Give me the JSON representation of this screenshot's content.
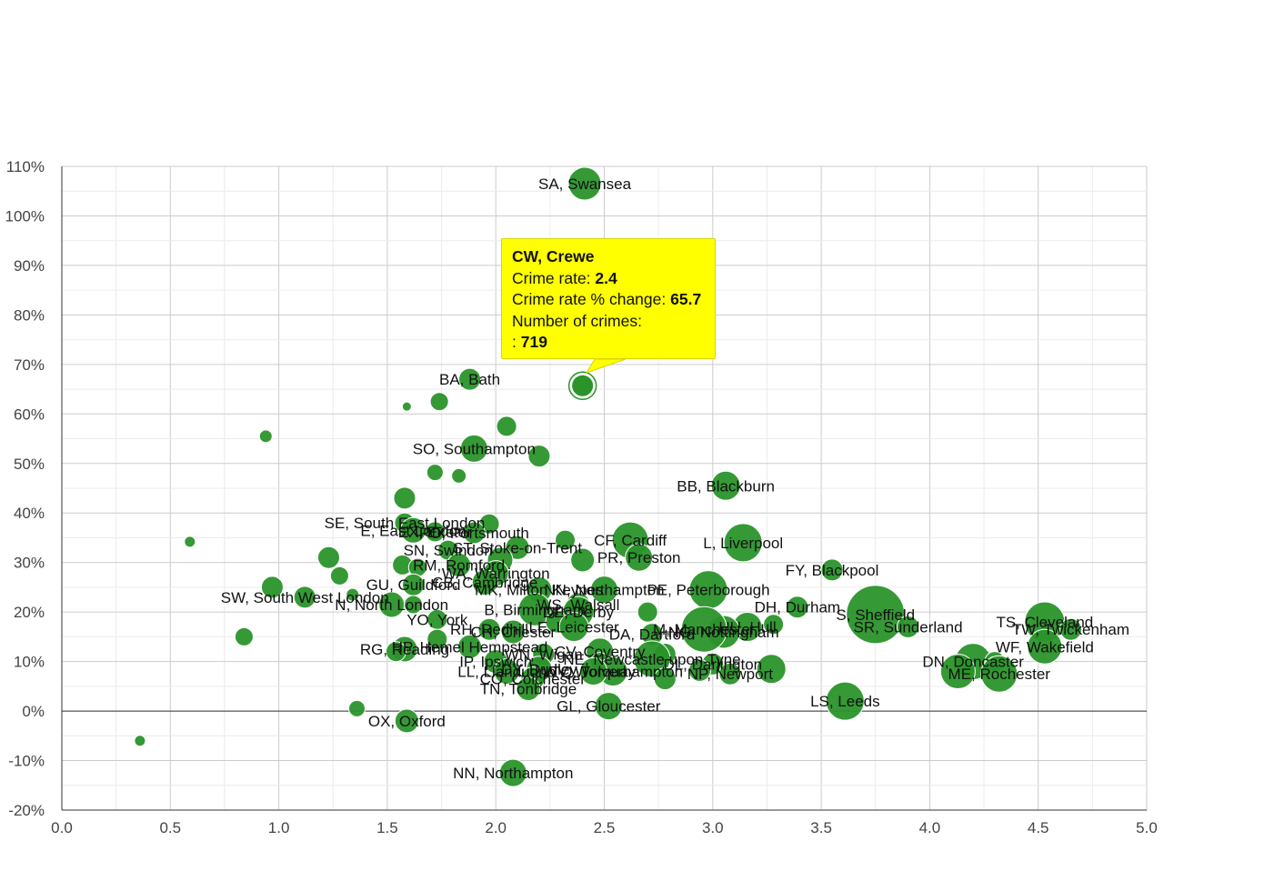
{
  "chart_data": {
    "type": "scatter",
    "title": "",
    "xlabel": "",
    "ylabel": "",
    "xlim": [
      0,
      5
    ],
    "ylim": [
      -20,
      110
    ],
    "x_ticks": [
      "0.0",
      "0.5",
      "1.0",
      "1.5",
      "2.0",
      "2.5",
      "3.0",
      "3.5",
      "4.0",
      "4.5",
      "5.0"
    ],
    "y_ticks": [
      "-20%",
      "-10%",
      "0%",
      "10%",
      "20%",
      "30%",
      "40%",
      "50%",
      "60%",
      "70%",
      "80%",
      "90%",
      "100%",
      "110%"
    ],
    "grid": true,
    "bubble_color": "#2a942a",
    "points": [
      {
        "label": "SA, Swansea",
        "x": 2.41,
        "y": 106.5,
        "r": 18
      },
      {
        "label": "BA, Bath",
        "x": 1.88,
        "y": 67,
        "r": 12
      },
      {
        "label": "",
        "x": 1.59,
        "y": 61.5,
        "r": 5
      },
      {
        "label": "",
        "x": 1.74,
        "y": 62.5,
        "r": 10
      },
      {
        "label": "",
        "x": 2.05,
        "y": 57.5,
        "r": 11
      },
      {
        "label": "",
        "x": 0.94,
        "y": 55.5,
        "r": 7
      },
      {
        "label": "SO, Southampton",
        "x": 1.9,
        "y": 53,
        "r": 15
      },
      {
        "label": "",
        "x": 2.2,
        "y": 51.5,
        "r": 12
      },
      {
        "label": "",
        "x": 1.72,
        "y": 48.2,
        "r": 9
      },
      {
        "label": "",
        "x": 1.83,
        "y": 47.5,
        "r": 8
      },
      {
        "label": "BB, Blackburn",
        "x": 3.06,
        "y": 45.5,
        "r": 16
      },
      {
        "label": "",
        "x": 1.58,
        "y": 43,
        "r": 12
      },
      {
        "label": "SE, South East London",
        "x": 1.58,
        "y": 38,
        "r": 11
      },
      {
        "label": "",
        "x": 1.97,
        "y": 37.8,
        "r": 11
      },
      {
        "label": "E, East London",
        "x": 1.62,
        "y": 36.5,
        "r": 14
      },
      {
        "label": "EX, Exeter",
        "x": 1.72,
        "y": 36.2,
        "r": 11
      },
      {
        "label": "PO, Portsmouth",
        "x": 1.9,
        "y": 36,
        "r": 12
      },
      {
        "label": "",
        "x": 0.59,
        "y": 34.2,
        "r": 6
      },
      {
        "label": "L, Liverpool",
        "x": 3.14,
        "y": 34,
        "r": 21
      },
      {
        "label": "CF, Cardiff",
        "x": 2.62,
        "y": 34.5,
        "r": 20
      },
      {
        "label": "",
        "x": 2.32,
        "y": 34.5,
        "r": 11
      },
      {
        "label": "ST, Stoke-on-Trent",
        "x": 2.1,
        "y": 33,
        "r": 13
      },
      {
        "label": "SN, Swindon",
        "x": 1.78,
        "y": 32.5,
        "r": 11
      },
      {
        "label": "",
        "x": 1.23,
        "y": 31,
        "r": 12
      },
      {
        "label": "PR, Preston",
        "x": 2.66,
        "y": 31,
        "r": 15
      },
      {
        "label": "",
        "x": 2.4,
        "y": 30.5,
        "r": 13
      },
      {
        "label": "",
        "x": 2.02,
        "y": 30.5,
        "r": 14
      },
      {
        "label": "RM, Romford",
        "x": 1.83,
        "y": 29.5,
        "r": 13
      },
      {
        "label": "",
        "x": 1.57,
        "y": 29.5,
        "r": 11
      },
      {
        "label": "",
        "x": 1.64,
        "y": 29,
        "r": 10
      },
      {
        "label": "FY, Blackpool",
        "x": 3.55,
        "y": 28.5,
        "r": 12
      },
      {
        "label": "WA, Warrington",
        "x": 2.0,
        "y": 27.8,
        "r": 14
      },
      {
        "label": "",
        "x": 1.28,
        "y": 27.3,
        "r": 10
      },
      {
        "label": "GU, Guildford",
        "x": 1.62,
        "y": 25.5,
        "r": 12
      },
      {
        "label": "CB, Cambridge",
        "x": 1.95,
        "y": 26,
        "r": 14
      },
      {
        "label": "MK, Milton Keynes",
        "x": 2.2,
        "y": 24.5,
        "r": 14
      },
      {
        "label": "NN, Northampton",
        "x": 2.5,
        "y": 24.5,
        "r": 15
      },
      {
        "label": "PE, Peterborough",
        "x": 2.98,
        "y": 24.5,
        "r": 21
      },
      {
        "label": "",
        "x": 0.97,
        "y": 25,
        "r": 12
      },
      {
        "label": "SW, South West London",
        "x": 1.12,
        "y": 23,
        "r": 12
      },
      {
        "label": "",
        "x": 1.34,
        "y": 23.5,
        "r": 7
      },
      {
        "label": "N, North London",
        "x": 1.52,
        "y": 21.5,
        "r": 14
      },
      {
        "label": "",
        "x": 1.62,
        "y": 21.5,
        "r": 10
      },
      {
        "label": "WS, Walsall",
        "x": 2.38,
        "y": 21.5,
        "r": 13
      },
      {
        "label": "DH, Durham",
        "x": 3.39,
        "y": 21,
        "r": 12
      },
      {
        "label": "S, Sheffield",
        "x": 3.75,
        "y": 19.5,
        "r": 32
      },
      {
        "label": "",
        "x": 2.7,
        "y": 20,
        "r": 11
      },
      {
        "label": "B, Birmingham",
        "x": 2.18,
        "y": 20.5,
        "r": 18
      },
      {
        "label": "DE, Derby",
        "x": 2.38,
        "y": 20,
        "r": 17
      },
      {
        "label": "YO, York",
        "x": 1.73,
        "y": 18.5,
        "r": 11
      },
      {
        "label": "",
        "x": 2.28,
        "y": 18,
        "r": 12
      },
      {
        "label": "TS, Cleveland",
        "x": 4.53,
        "y": 18,
        "r": 22
      },
      {
        "label": "TW, Twickenham",
        "x": 4.65,
        "y": 16.5,
        "r": 12
      },
      {
        "label": "HU, Hull",
        "x": 3.16,
        "y": 17,
        "r": 16
      },
      {
        "label": "",
        "x": 3.28,
        "y": 17.5,
        "r": 11
      },
      {
        "label": "NG, Nottingham",
        "x": 3.05,
        "y": 16,
        "r": 18
      },
      {
        "label": "SR, Sunderland",
        "x": 3.9,
        "y": 17,
        "r": 12
      },
      {
        "label": "RH, Redhill",
        "x": 1.97,
        "y": 16.5,
        "r": 12
      },
      {
        "label": "LE, Leicester",
        "x": 2.36,
        "y": 17,
        "r": 16
      },
      {
        "label": "M, Manchester",
        "x": 2.96,
        "y": 16.5,
        "r": 25
      },
      {
        "label": "CH, Chester",
        "x": 2.08,
        "y": 16,
        "r": 13
      },
      {
        "label": "DA, Dartford",
        "x": 2.72,
        "y": 15.5,
        "r": 12
      },
      {
        "label": "",
        "x": 0.84,
        "y": 15,
        "r": 10
      },
      {
        "label": "",
        "x": 1.73,
        "y": 14.5,
        "r": 11
      },
      {
        "label": "WF, Wakefield",
        "x": 4.53,
        "y": 13,
        "r": 19
      },
      {
        "label": "HP, Hemel Hempstead",
        "x": 1.88,
        "y": 13,
        "r": 13
      },
      {
        "label": "RG, Reading",
        "x": 1.58,
        "y": 12.5,
        "r": 14
      },
      {
        "label": "",
        "x": 1.54,
        "y": 12,
        "r": 11
      },
      {
        "label": "CV, Coventry",
        "x": 2.48,
        "y": 12,
        "r": 15
      },
      {
        "label": "WN, Wigan",
        "x": 2.22,
        "y": 11.5,
        "r": 12
      },
      {
        "label": "",
        "x": 2.78,
        "y": 11.5,
        "r": 12
      },
      {
        "label": "IP, Ipswich",
        "x": 2.0,
        "y": 10,
        "r": 13
      },
      {
        "label": "NE, Newcastle upon Tyne",
        "x": 2.72,
        "y": 10.5,
        "r": 20
      },
      {
        "label": "DN, Doncaster",
        "x": 4.2,
        "y": 10,
        "r": 20
      },
      {
        "label": "",
        "x": 4.3,
        "y": 10,
        "r": 11
      },
      {
        "label": "",
        "x": 2.48,
        "y": 10,
        "r": 10
      },
      {
        "label": "DL, Darlington",
        "x": 3.0,
        "y": 9.5,
        "r": 12
      },
      {
        "label": "DY, Dudley",
        "x": 2.2,
        "y": 8.5,
        "r": 14
      },
      {
        "label": "LL, Llandudno",
        "x": 2.05,
        "y": 8,
        "r": 14
      },
      {
        "label": "WV, Wolverhampton",
        "x": 2.54,
        "y": 8,
        "r": 16
      },
      {
        "label": "TQ, Torquay",
        "x": 2.45,
        "y": 8,
        "r": 15
      },
      {
        "label": "",
        "x": 2.94,
        "y": 8.2,
        "r": 12
      },
      {
        "label": "",
        "x": 3.27,
        "y": 8.5,
        "r": 16
      },
      {
        "label": "NP, Newport",
        "x": 3.08,
        "y": 7.5,
        "r": 12
      },
      {
        "label": "",
        "x": 4.13,
        "y": 8,
        "r": 19
      },
      {
        "label": "ME, Rochester",
        "x": 4.32,
        "y": 7.5,
        "r": 20
      },
      {
        "label": "CO, Colchester",
        "x": 2.17,
        "y": 6.5,
        "r": 13
      },
      {
        "label": "",
        "x": 2.78,
        "y": 6.5,
        "r": 12
      },
      {
        "label": "TN, Tonbridge",
        "x": 2.15,
        "y": 4.5,
        "r": 13
      },
      {
        "label": "LS, Leeds",
        "x": 3.61,
        "y": 2,
        "r": 21
      },
      {
        "label": "GL, Gloucester",
        "x": 2.52,
        "y": 1,
        "r": 15
      },
      {
        "label": "",
        "x": 1.36,
        "y": 0.5,
        "r": 9
      },
      {
        "label": "OX, Oxford",
        "x": 1.59,
        "y": -2,
        "r": 13
      },
      {
        "label": "",
        "x": 0.36,
        "y": -6,
        "r": 6
      },
      {
        "label": "NN, Northampton",
        "x": 2.08,
        "y": -12.5,
        "r": 15
      }
    ],
    "highlight": {
      "label": "CW, Crewe",
      "x": 2.4,
      "y": 65.7,
      "r": 12
    }
  },
  "tooltip": {
    "title": "CW, Crewe",
    "rate_label": "Crime rate:",
    "rate_value": "2.4",
    "change_label": "Crime rate % change:",
    "change_value": "65.7",
    "count_label": "Number of crimes:",
    "count_prefix": ":",
    "count_value": "719"
  }
}
